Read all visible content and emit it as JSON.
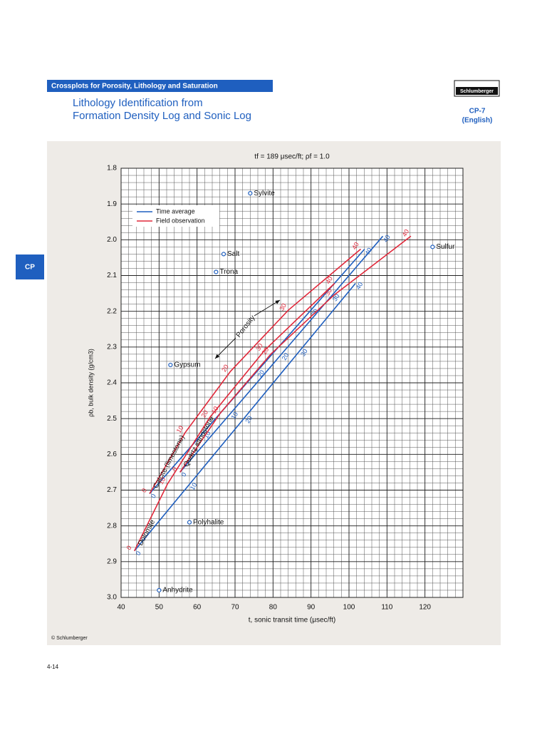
{
  "header": {
    "section": "Crossplots for Porosity, Lithology and Saturation",
    "logo": "Schlumberger",
    "title_lines": [
      "Lithology Identification from",
      "Formation Density Log and Sonic Log"
    ],
    "code": "CP-7",
    "edition": "(English)",
    "tab": "CP"
  },
  "footer": {
    "copyright": "© Schlumberger",
    "page": "4-14"
  },
  "chart_data": {
    "type": "crossplot",
    "title": "tf = 189 μsec/ft; ρf = 1.0",
    "x_label": "t, sonic transit time (μsec/ft)",
    "y_label": "ρb, bulk density (g/cm3)",
    "xlim": [
      40,
      130
    ],
    "xticks": [
      40,
      50,
      60,
      70,
      80,
      90,
      100,
      110,
      120
    ],
    "ylim": [
      1.8,
      3.0
    ],
    "y_reversed": true,
    "yticks": [
      1.8,
      1.9,
      {
        "value": 2,
        "label": "2.0"
      },
      2.1,
      2.2,
      2.3,
      2.4,
      2.5,
      2.6,
      2.7,
      2.8,
      2.9,
      {
        "value": 3,
        "label": "3.0"
      }
    ],
    "grid": true,
    "legend": {
      "time_average": {
        "label": "Time average",
        "color": "#1f5fbf"
      },
      "field_observation": {
        "label": "Field observation",
        "color": "#e0283a"
      }
    },
    "curves": [
      {
        "lithology": "Calcite (limestone)",
        "time_average": {
          "porosity": [
            0,
            10,
            20,
            30,
            40
          ],
          "x": [
            47.5,
            61.65,
            75.8,
            89.95,
            104.1
          ],
          "y": [
            2.71,
            2.539,
            2.368,
            2.197,
            2.026
          ]
        },
        "field_observation": {
          "porosity": [
            0,
            10,
            20,
            30,
            40
          ],
          "x": [
            47.5,
            56.9,
            68.8,
            84.0,
            103.1
          ],
          "y": [
            2.71,
            2.539,
            2.368,
            2.197,
            2.026
          ]
        }
      },
      {
        "lithology": "Quartz sandstone",
        "time_average": {
          "porosity": [
            0,
            10,
            20,
            30,
            40
          ],
          "x": [
            55.5,
            68.85,
            82.2,
            95.55,
            108.9
          ],
          "y": [
            2.65,
            2.485,
            2.32,
            2.155,
            1.99
          ]
        },
        "field_observation": {
          "porosity": [
            0,
            10,
            20,
            30,
            40
          ],
          "x": [
            55.5,
            66.1,
            79.4,
            96.0,
            116.3
          ],
          "y": [
            2.65,
            2.485,
            2.32,
            2.155,
            1.99
          ]
        }
      },
      {
        "lithology": "Dolomite",
        "time_average": {
          "porosity": [
            0,
            10,
            20,
            30,
            40
          ],
          "x": [
            43.5,
            58.05,
            72.6,
            87.15,
            101.7
          ],
          "y": [
            2.87,
            2.683,
            2.496,
            2.309,
            2.122
          ]
        },
        "field_observation": {
          "porosity": [
            0,
            10,
            20,
            30,
            40
          ],
          "x": [
            43.5,
            52.2,
            63.4,
            77.8,
            96.2
          ],
          "y": [
            2.87,
            2.683,
            2.496,
            2.309,
            2.122
          ]
        }
      }
    ],
    "minerals": [
      {
        "name": "Sylvite",
        "x": 74,
        "y": 1.87
      },
      {
        "name": "Salt",
        "x": 67,
        "y": 2.04
      },
      {
        "name": "Trona",
        "x": 65,
        "y": 2.09
      },
      {
        "name": "Gypsum",
        "x": 53,
        "y": 2.35
      },
      {
        "name": "Polyhalite",
        "x": 58,
        "y": 2.79
      },
      {
        "name": "Anhydrite",
        "x": 50,
        "y": 2.98
      },
      {
        "name": "Sulfur",
        "x": 122,
        "y": 2.02
      }
    ],
    "annotation": "Porosity"
  }
}
